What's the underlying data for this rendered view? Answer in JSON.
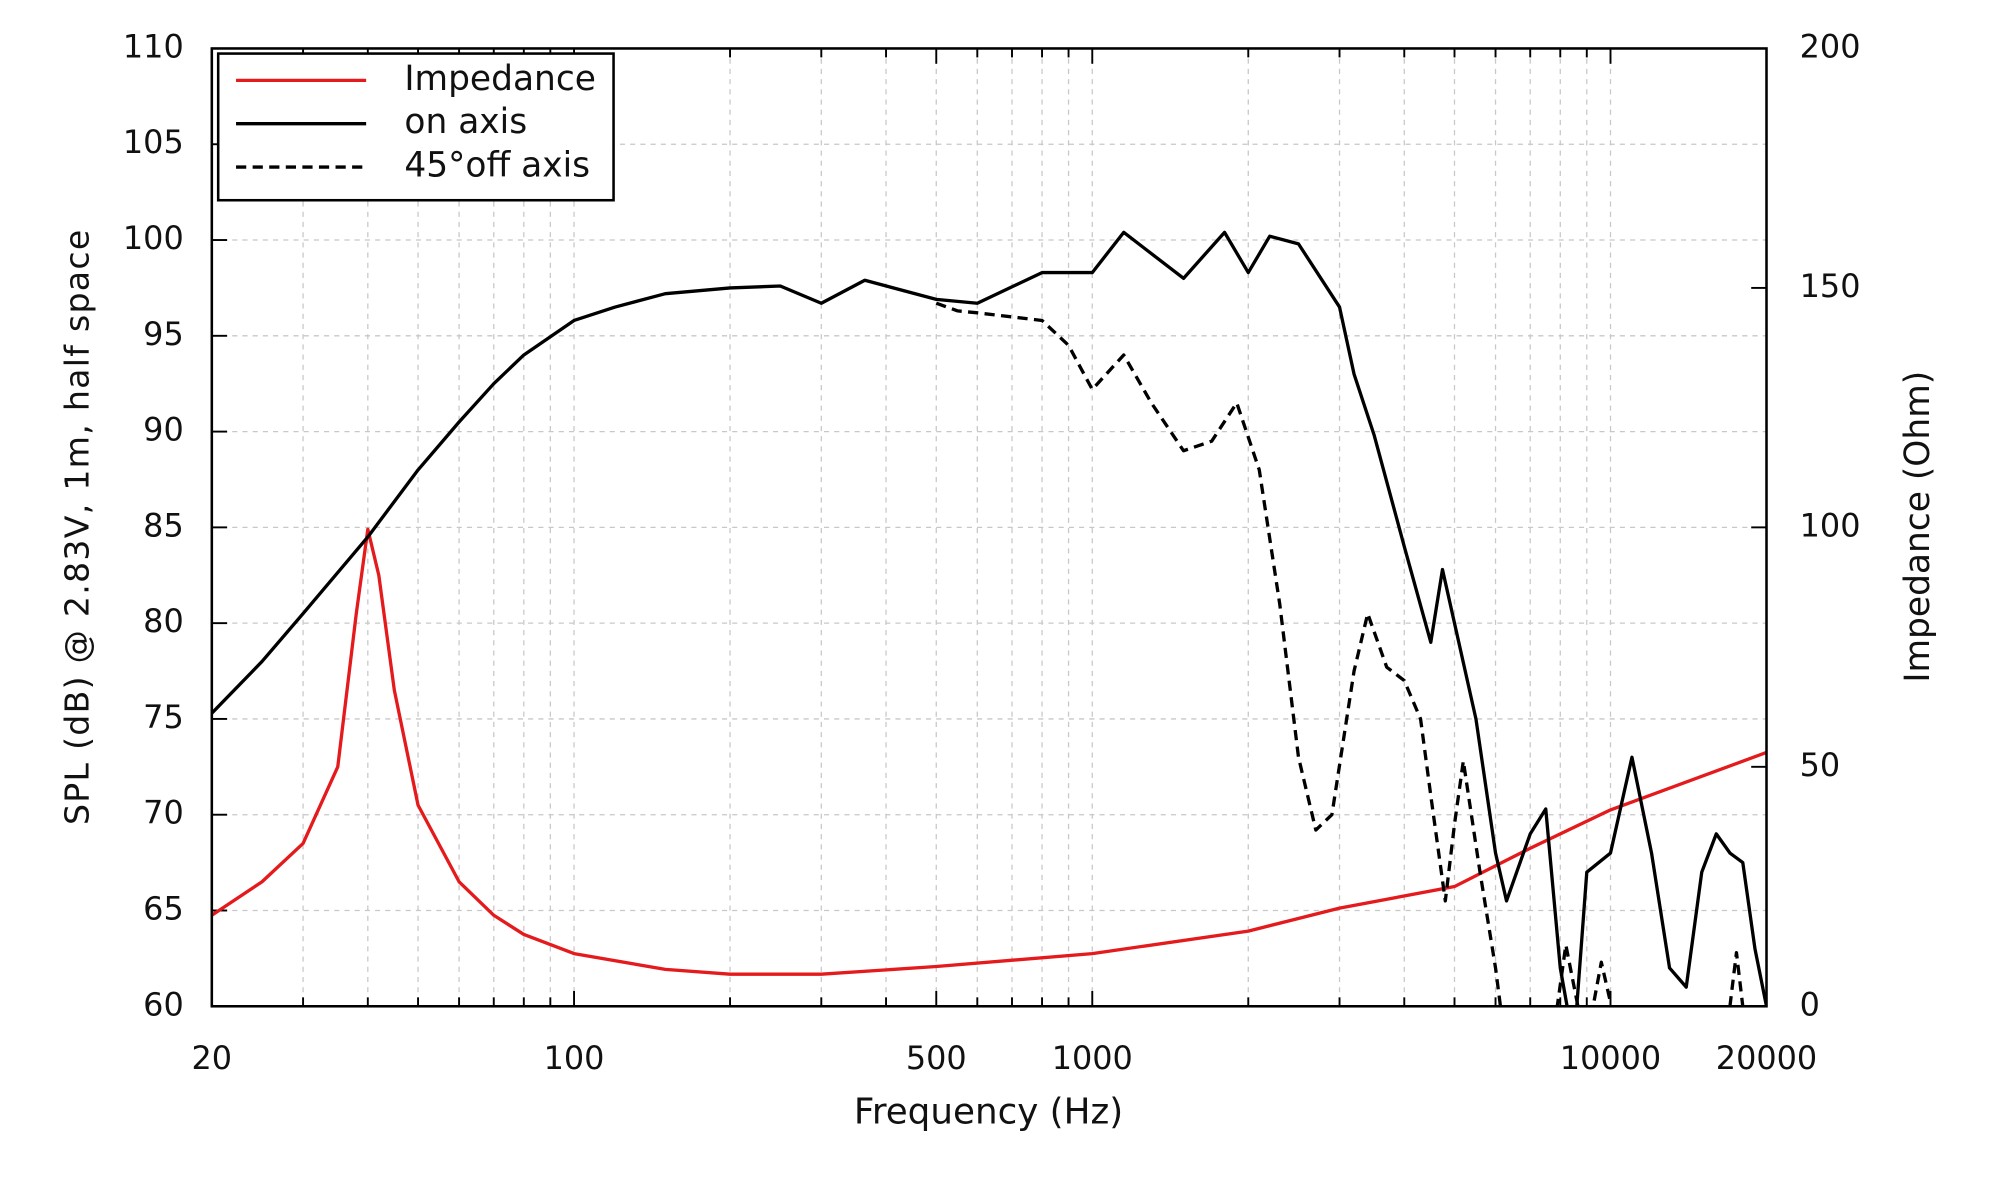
{
  "chart_data": {
    "type": "line",
    "xlabel": "Frequency (Hz)",
    "ylabel": "SPL (dB) @ 2.83V, 1m, half space",
    "y2label": "Impedance (Ohm)",
    "xscale": "log",
    "xlim": [
      20,
      20000
    ],
    "xticks": [
      20,
      100,
      500,
      1000,
      10000,
      20000
    ],
    "xminorticks": [
      30,
      40,
      50,
      60,
      70,
      80,
      90,
      200,
      300,
      400,
      600,
      700,
      800,
      900,
      2000,
      3000,
      4000,
      5000,
      6000,
      7000,
      8000,
      9000
    ],
    "ylim": [
      60,
      110
    ],
    "yticks": [
      60,
      65,
      70,
      75,
      80,
      85,
      90,
      95,
      100,
      105,
      110
    ],
    "y2lim": [
      0,
      200
    ],
    "y2ticks": [
      0,
      50,
      100,
      150,
      200
    ],
    "grid": true,
    "legend": "upper left",
    "series": [
      {
        "name": "Impedance",
        "color": "#e41a1c",
        "linestyle": "solid",
        "axis": "y2",
        "x": [
          20,
          25,
          30,
          35,
          38,
          40,
          42,
          45,
          50,
          60,
          70,
          80,
          100,
          150,
          200,
          300,
          500,
          1000,
          2000,
          3000,
          5000,
          7000,
          10000,
          20000
        ],
        "values": [
          19,
          26,
          34,
          50,
          82,
          99.6,
          90,
          66,
          42,
          26,
          19,
          15,
          11,
          7.7,
          6.7,
          6.7,
          8.3,
          11,
          15.7,
          20.5,
          25,
          33,
          41,
          53
        ]
      },
      {
        "name": "on axis",
        "color": "#000000",
        "linestyle": "solid",
        "x": [
          20,
          25,
          30,
          40,
          50,
          60,
          70,
          80,
          100,
          120,
          150,
          200,
          250,
          300,
          364,
          500,
          600,
          800,
          1000,
          1150,
          1500,
          1800,
          2000,
          2200,
          2500,
          3000,
          3200,
          3500,
          4000,
          4500,
          4740,
          5500,
          6000,
          6300,
          7000,
          7500,
          8000,
          8500,
          9000,
          10000,
          11000,
          12000,
          13000,
          14000,
          15000,
          16000,
          17000,
          18000,
          19000,
          20000
        ],
        "values": [
          75.3,
          78,
          80.5,
          84.5,
          88,
          90.5,
          92.5,
          94,
          95.8,
          96.5,
          97.2,
          97.5,
          97.6,
          96.7,
          97.9,
          96.9,
          96.7,
          98.3,
          98.3,
          100.4,
          98,
          100.4,
          98.3,
          100.2,
          99.8,
          96.5,
          93,
          89.8,
          84,
          79,
          82.8,
          75,
          68,
          65.5,
          69,
          70.3,
          62,
          58,
          67,
          68,
          73,
          68,
          62,
          61,
          67,
          69,
          68,
          67.5,
          63,
          60
        ]
      },
      {
        "name": "45°off axis",
        "color": "#000000",
        "linestyle": "dashed",
        "x": [
          500,
          550,
          600,
          800,
          900,
          1000,
          1150,
          1300,
          1500,
          1700,
          1900,
          2100,
          2300,
          2500,
          2700,
          2900,
          3200,
          3400,
          3700,
          4000,
          4300,
          4500,
          4800,
          5000,
          5200,
          5600,
          6000,
          6200,
          7000,
          7800,
          8200,
          8800,
          9000,
          9300,
          9600,
          10000,
          13000,
          17000,
          17500,
          18000
        ],
        "values": [
          96.7,
          96.3,
          96.2,
          95.8,
          94.5,
          92.2,
          94,
          91.5,
          89,
          89.5,
          91.5,
          88,
          81,
          73,
          69.2,
          70,
          77.5,
          80.5,
          77.7,
          77,
          75,
          71,
          65.5,
          69.5,
          72.8,
          67,
          62,
          59,
          null,
          59,
          63.2,
          59,
          null,
          60.3,
          62.3,
          60.2,
          null,
          60,
          62.8,
          60
        ]
      }
    ]
  }
}
